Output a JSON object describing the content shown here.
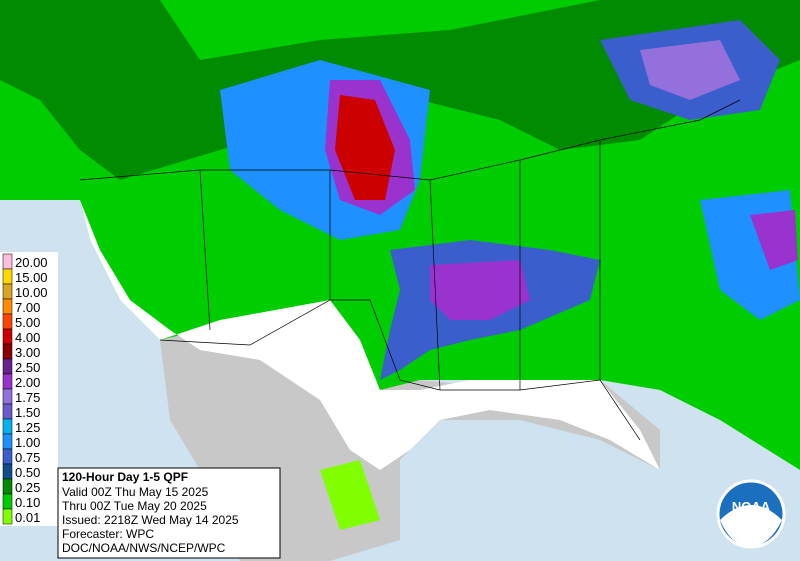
{
  "legend": {
    "items": [
      {
        "label": "20.00",
        "color": "#ffbedc"
      },
      {
        "label": "15.00",
        "color": "#ffd700"
      },
      {
        "label": "10.00",
        "color": "#daa520"
      },
      {
        "label": "7.00",
        "color": "#ff8c00"
      },
      {
        "label": "5.00",
        "color": "#ff4500"
      },
      {
        "label": "4.00",
        "color": "#cd0000"
      },
      {
        "label": "3.00",
        "color": "#8b0000"
      },
      {
        "label": "2.50",
        "color": "#68228b"
      },
      {
        "label": "2.00",
        "color": "#9a32cd"
      },
      {
        "label": "1.75",
        "color": "#9370db"
      },
      {
        "label": "1.50",
        "color": "#6a5acd"
      },
      {
        "label": "1.25",
        "color": "#00b2ee"
      },
      {
        "label": "1.00",
        "color": "#1e90ff"
      },
      {
        "label": "0.75",
        "color": "#3a5fcd"
      },
      {
        "label": "0.50",
        "color": "#104e8b"
      },
      {
        "label": "0.25",
        "color": "#008b00"
      },
      {
        "label": "0.10",
        "color": "#00cd00"
      },
      {
        "label": "0.01",
        "color": "#7fff00"
      }
    ]
  },
  "info": {
    "title": "120-Hour Day 1-5 QPF",
    "lines": [
      "Valid 00Z Thu May 15 2025",
      "Thru 00Z Tue May 20 2025",
      "Issued: 2218Z Wed May 14 2025",
      "Forecaster: WPC",
      "DOC/NOAA/NWS/NCEP/WPC"
    ]
  },
  "logo": {
    "text": "NOAA"
  }
}
